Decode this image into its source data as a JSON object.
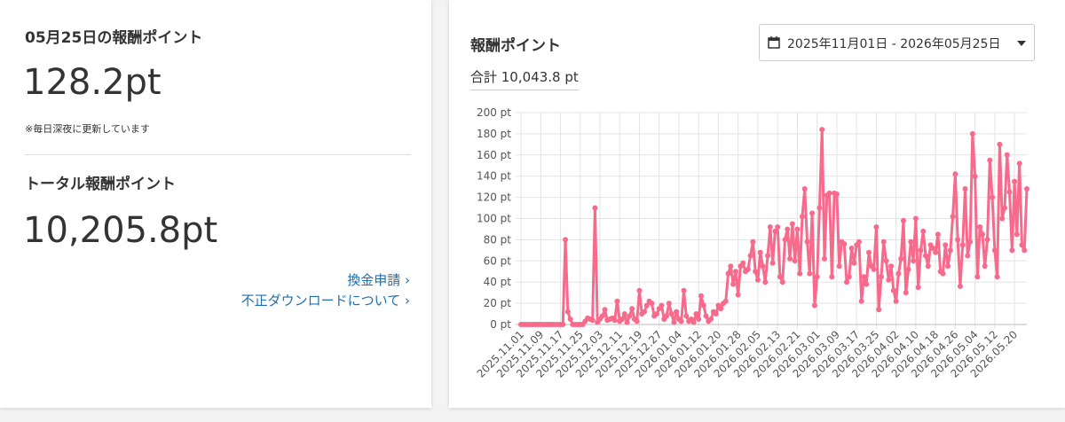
{
  "left_card": {
    "daily_title": "05月25日の報酬ポイント",
    "daily_value": "128.2pt",
    "note": "※毎日深夜に更新しています",
    "total_title": "トータル報酬ポイント",
    "total_value": "10,205.8pt",
    "links": [
      "換金申請 ›",
      "不正ダウンロードについて ›"
    ]
  },
  "right_card": {
    "title": "報酬ポイント",
    "date_range": "2025年11月01日 - 2026年05月25日",
    "sum": "合計 10,043.8 pt"
  },
  "chart_data": {
    "type": "line",
    "color": "#f76a8c",
    "grid": true,
    "categories": [
      "2025.11.01",
      null,
      null,
      null,
      null,
      null,
      null,
      null,
      "2025.11.09",
      null,
      null,
      null,
      null,
      null,
      null,
      null,
      "2025.11.17",
      null,
      null,
      null,
      null,
      null,
      null,
      null,
      "2025.11.25",
      null,
      null,
      null,
      null,
      null,
      null,
      null,
      "2025.12.03",
      null,
      null,
      null,
      null,
      null,
      null,
      null,
      "2025.12.11",
      null,
      null,
      null,
      null,
      null,
      null,
      null,
      "2025.12.19",
      null,
      null,
      null,
      null,
      null,
      null,
      null,
      "2025.12.27",
      null,
      null,
      null,
      null,
      null,
      null,
      null,
      "2026.01.04",
      null,
      null,
      null,
      null,
      null,
      null,
      null,
      "2026.01.12",
      null,
      null,
      null,
      null,
      null,
      null,
      null,
      "2026.01.20",
      null,
      null,
      null,
      null,
      null,
      null,
      null,
      "2026.01.28",
      null,
      null,
      null,
      null,
      null,
      null,
      null,
      "2026.02.05",
      null,
      null,
      null,
      null,
      null,
      null,
      null,
      "2026.02.13",
      null,
      null,
      null,
      null,
      null,
      null,
      null,
      "2026.02.21",
      null,
      null,
      null,
      null,
      null,
      null,
      null,
      "2026.03.01",
      null,
      null,
      null,
      null,
      null,
      null,
      null,
      "2026.03.09",
      null,
      null,
      null,
      null,
      null,
      null,
      null,
      "2026.03.17",
      null,
      null,
      null,
      null,
      null,
      null,
      null,
      "2026.03.25",
      null,
      null,
      null,
      null,
      null,
      null,
      null,
      "2026.04.02",
      null,
      null,
      null,
      null,
      null,
      null,
      null,
      "2026.04.10",
      null,
      null,
      null,
      null,
      null,
      null,
      null,
      "2026.04.18",
      null,
      null,
      null,
      null,
      null,
      null,
      null,
      "2026.04.26",
      null,
      null,
      null,
      null,
      null,
      null,
      null,
      "2026.05.04",
      null,
      null,
      null,
      null,
      null,
      null,
      null,
      "2026.05.12",
      null,
      null,
      null,
      null,
      null,
      null,
      null,
      "2026.05.20",
      null,
      null,
      null,
      null,
      null
    ],
    "values": [
      0,
      0,
      0,
      0,
      0,
      0,
      0,
      0,
      0,
      0,
      0,
      0,
      0,
      0,
      0,
      0,
      0,
      0,
      80,
      12,
      5,
      0,
      0,
      0,
      0,
      0,
      3,
      6,
      5,
      4,
      110,
      2,
      5,
      8,
      14,
      4,
      5,
      6,
      4,
      22,
      3,
      5,
      10,
      2,
      8,
      15,
      5,
      3,
      32,
      10,
      12,
      18,
      22,
      20,
      8,
      10,
      15,
      18,
      5,
      8,
      20,
      10,
      2,
      12,
      5,
      3,
      32,
      8,
      3,
      5,
      2,
      10,
      5,
      27,
      18,
      8,
      3,
      5,
      12,
      10,
      18,
      15,
      20,
      22,
      48,
      55,
      38,
      50,
      28,
      55,
      58,
      50,
      52,
      65,
      78,
      50,
      42,
      68,
      55,
      40,
      65,
      92,
      58,
      88,
      92,
      45,
      40,
      80,
      90,
      62,
      95,
      60,
      90,
      48,
      102,
      128,
      78,
      48,
      105,
      18,
      45,
      110,
      184,
      62,
      122,
      124,
      45,
      124,
      123,
      55,
      78,
      76,
      40,
      45,
      72,
      58,
      75,
      78,
      22,
      45,
      38,
      68,
      55,
      52,
      92,
      14,
      45,
      78,
      60,
      42,
      55,
      32,
      22,
      48,
      62,
      98,
      30,
      52,
      78,
      60,
      100,
      35,
      70,
      88,
      65,
      55,
      75,
      72,
      68,
      85,
      50,
      48,
      75,
      55,
      70,
      102,
      142,
      80,
      36,
      75,
      128,
      65,
      78,
      180,
      140,
      45,
      92,
      85,
      55,
      80,
      155,
      120,
      70,
      45,
      170,
      100,
      110,
      160,
      125,
      70,
      135,
      85,
      152,
      75,
      70,
      128
    ],
    "ylim": [
      0,
      200
    ],
    "yticks": [
      {
        "value": 0,
        "label": "0 pt"
      },
      {
        "value": 20,
        "label": "20 pt"
      },
      {
        "value": 40,
        "label": "40 pt"
      },
      {
        "value": 60,
        "label": "60 pt"
      },
      {
        "value": 80,
        "label": "80 pt"
      },
      {
        "value": 100,
        "label": "100 pt"
      },
      {
        "value": 120,
        "label": "120 pt"
      },
      {
        "value": 140,
        "label": "140 pt"
      },
      {
        "value": 160,
        "label": "160 pt"
      },
      {
        "value": 180,
        "label": "180 pt"
      },
      {
        "value": 200,
        "label": "200 pt"
      }
    ]
  }
}
